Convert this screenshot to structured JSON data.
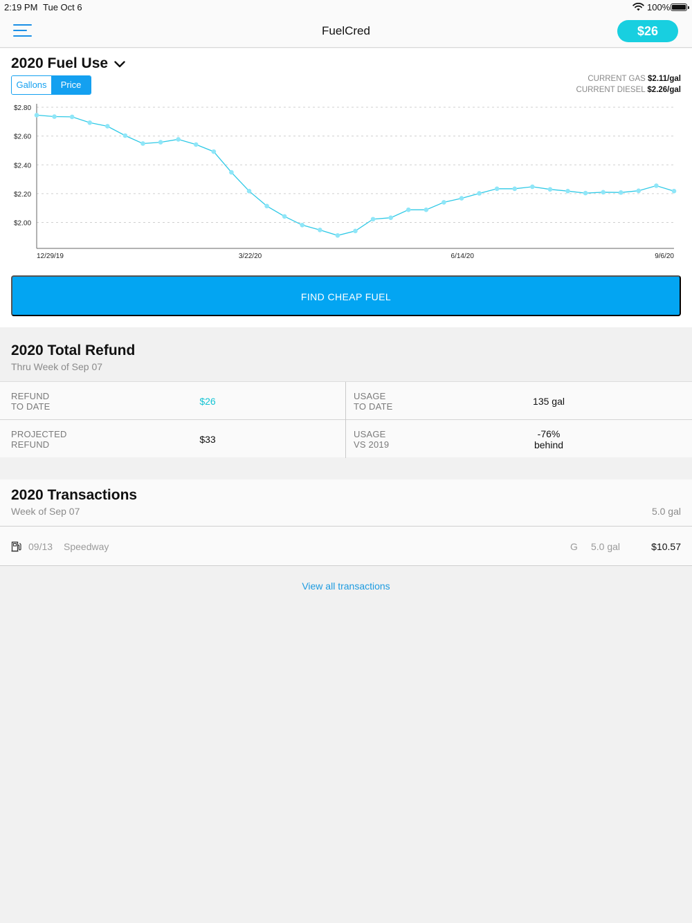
{
  "status_bar": {
    "time": "2:19 PM",
    "date": "Tue Oct 6",
    "battery": "100%"
  },
  "nav": {
    "title": "FuelCred",
    "balance": "$26"
  },
  "fuel_use": {
    "title": "2020 Fuel Use",
    "toggle": {
      "gallons_label": "Gallons",
      "price_label": "Price",
      "selected": "Price"
    },
    "current_gas_label": "CURRENT GAS",
    "current_gas_value": "$2.11/gal",
    "current_diesel_label": "CURRENT DIESEL",
    "current_diesel_value": "$2.26/gal",
    "find_button": "FIND CHEAP FUEL"
  },
  "chart_data": {
    "type": "line",
    "title": "",
    "xlabel": "",
    "ylabel": "",
    "ylim": [
      1.82,
      2.8
    ],
    "y_ticks": [
      "$2.80",
      "$2.60",
      "$2.40",
      "$2.20",
      "$2.00"
    ],
    "y_tick_values": [
      2.8,
      2.6,
      2.4,
      2.2,
      2.0
    ],
    "x_tick_labels": [
      "12/29/19",
      "3/22/20",
      "6/14/20",
      "9/6/20"
    ],
    "grid": true,
    "color": "#2ec9e6",
    "marker_color": "#8fe6f8",
    "series": [
      {
        "name": "",
        "values": [
          2.745,
          2.735,
          2.733,
          2.693,
          2.668,
          2.603,
          2.548,
          2.557,
          2.577,
          2.541,
          2.492,
          2.348,
          2.218,
          2.114,
          2.042,
          1.982,
          1.948,
          1.91,
          1.941,
          2.023,
          2.033,
          2.088,
          2.088,
          2.14,
          2.168,
          2.202,
          2.234,
          2.234,
          2.248,
          2.23,
          2.218,
          2.204,
          2.21,
          2.208,
          2.22,
          2.255,
          2.218
        ]
      }
    ]
  },
  "refund": {
    "title": "2020 Total Refund",
    "subtitle": "Thru Week of Sep 07",
    "refund_to_date_label_1": "REFUND",
    "refund_to_date_label_2": "TO DATE",
    "refund_to_date_value": "$26",
    "usage_to_date_label_1": "USAGE",
    "usage_to_date_label_2": "TO DATE",
    "usage_to_date_value": "135 gal",
    "projected_label_1": "PROJECTED",
    "projected_label_2": "REFUND",
    "projected_value": "$33",
    "usage_vs_label_1": "USAGE",
    "usage_vs_label_2": "VS 2019",
    "usage_vs_value_1": "-76%",
    "usage_vs_value_2": "behind",
    "accent": "#14c4d4"
  },
  "transactions": {
    "title": "2020 Transactions",
    "week": "Week of Sep 07",
    "week_total": "5.0 gal",
    "items": [
      {
        "date": "09/13",
        "station": "Speedway",
        "grade": "G",
        "gallons": "5.0 gal",
        "amount": "$10.57"
      }
    ],
    "view_all": "View all transactions"
  }
}
